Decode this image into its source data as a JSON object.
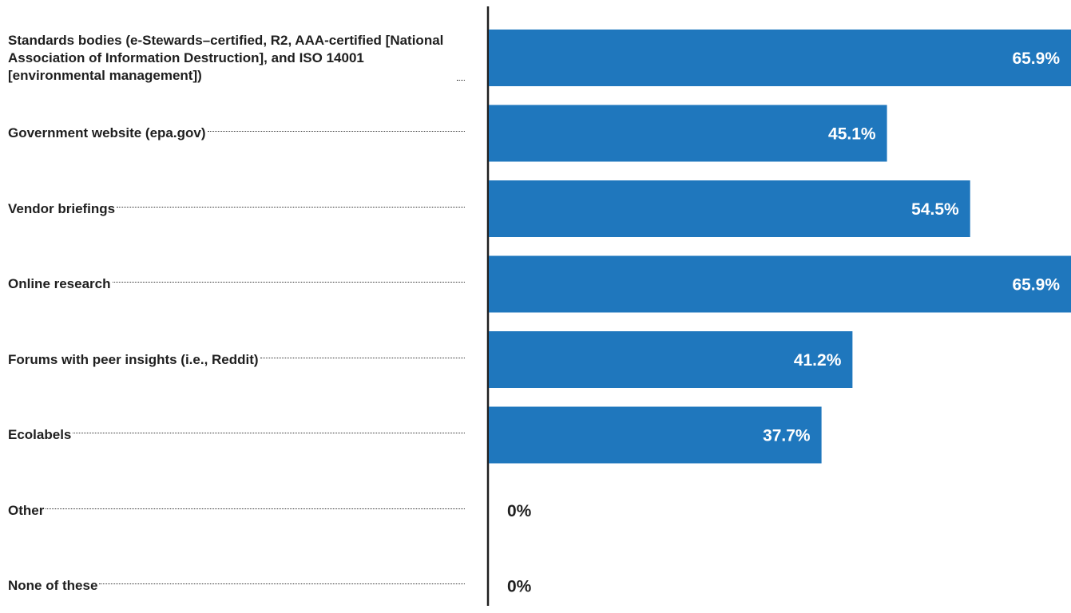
{
  "chart_data": {
    "type": "bar",
    "orientation": "horizontal",
    "categories": [
      "Standards bodies (e-Stewards–certified, R2, AAA-certified [National Association of Information Destruction], and ISO 14001 [environmental management])",
      "Government website (epa.gov)",
      "Vendor briefings",
      "Online research",
      "Forums with peer insights (i.e., Reddit)",
      "Ecolabels",
      "Other",
      "None of these"
    ],
    "values": [
      65.9,
      45.1,
      54.5,
      65.9,
      41.2,
      37.7,
      0,
      0
    ],
    "value_labels": [
      "65.9%",
      "45.1%",
      "54.5%",
      "65.9%",
      "41.2%",
      "37.7%",
      "0%",
      "0%"
    ],
    "xlim": [
      0,
      65.9
    ],
    "bar_color": "#1f77bd",
    "inside_label_color": "#ffffff",
    "outside_label_color": "#1f1f1f",
    "axis_color": "#1f1f1f",
    "grid": false
  }
}
